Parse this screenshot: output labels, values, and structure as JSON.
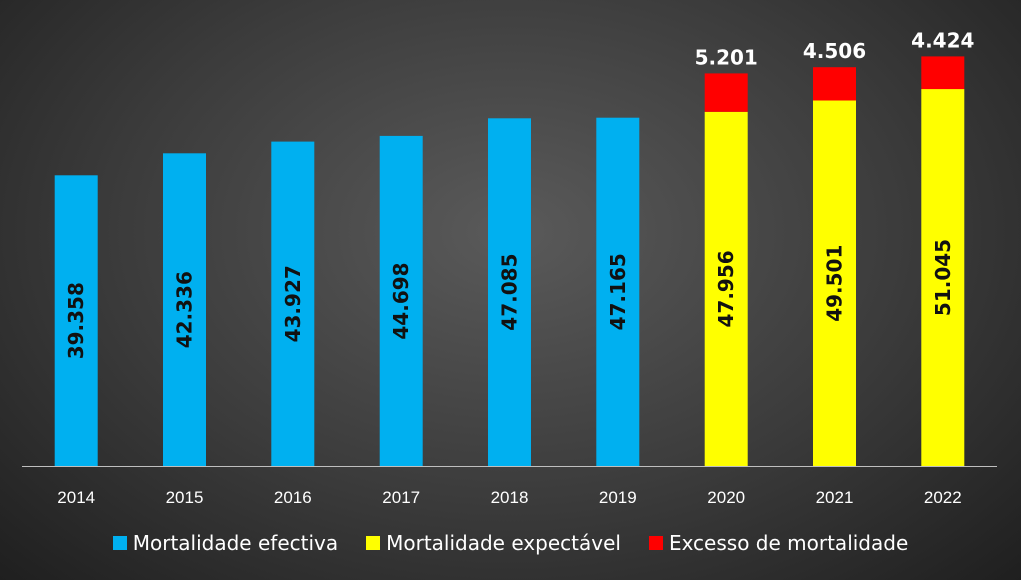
{
  "chart_data": {
    "type": "bar",
    "stacked": true,
    "categories": [
      "2014",
      "2015",
      "2016",
      "2017",
      "2018",
      "2019",
      "2020",
      "2021",
      "2022"
    ],
    "series": [
      {
        "name": "Mortalidade efectiva",
        "color": "#00b0f0",
        "values": [
          39358,
          42336,
          43927,
          44698,
          47085,
          47165,
          null,
          null,
          null
        ],
        "labels": [
          "39.358",
          "42.336",
          "43.927",
          "44.698",
          "47.085",
          "47.165",
          "",
          "",
          ""
        ]
      },
      {
        "name": "Mortalidade expectável",
        "color": "#ffff00",
        "values": [
          null,
          null,
          null,
          null,
          null,
          null,
          47956,
          49501,
          51045
        ],
        "labels": [
          "",
          "",
          "",
          "",
          "",
          "",
          "47.956",
          "49.501",
          "51.045"
        ]
      },
      {
        "name": "Excesso de mortalidade",
        "color": "#ff0000",
        "values": [
          null,
          null,
          null,
          null,
          null,
          null,
          5201,
          4506,
          4424
        ],
        "labels": [
          "",
          "",
          "",
          "",
          "",
          "",
          "5.201",
          "4.506",
          "4.424"
        ]
      }
    ],
    "ylim": [
      0,
      56000
    ],
    "grid": false,
    "legend_position": "bottom"
  }
}
